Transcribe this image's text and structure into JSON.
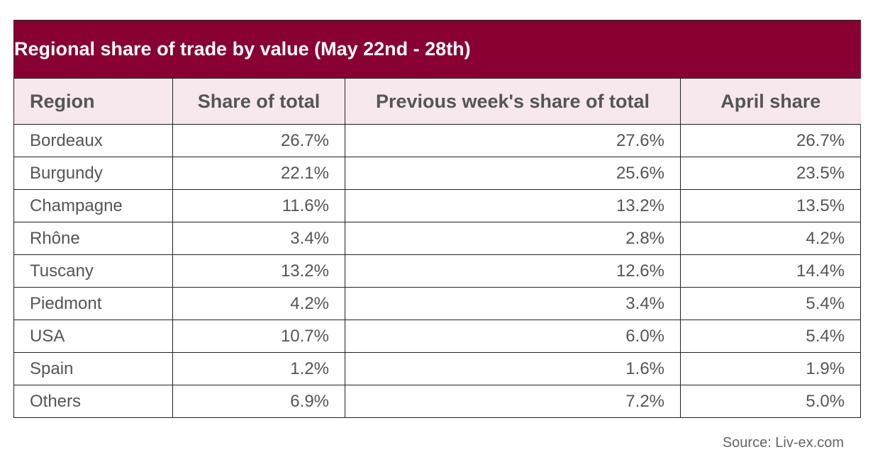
{
  "table": {
    "title": "Regional share of trade by value (May 22nd - 28th)",
    "headers": [
      "Region",
      "Share of total",
      "Previous week's share of total",
      "April share"
    ],
    "rows": [
      [
        "Bordeaux",
        "26.7%",
        "27.6%",
        "26.7%"
      ],
      [
        "Burgundy",
        "22.1%",
        "25.6%",
        "23.5%"
      ],
      [
        "Champagne",
        "11.6%",
        "13.2%",
        "13.5%"
      ],
      [
        "Rhône",
        "3.4%",
        "2.8%",
        "4.2%"
      ],
      [
        "Tuscany",
        "13.2%",
        "12.6%",
        "14.4%"
      ],
      [
        "Piedmont",
        "4.2%",
        "3.4%",
        "5.4%"
      ],
      [
        "USA",
        "10.7%",
        "6.0%",
        "5.4%"
      ],
      [
        "Spain",
        "1.2%",
        "1.6%",
        "1.9%"
      ],
      [
        "Others",
        "6.9%",
        "7.2%",
        "5.0%"
      ]
    ],
    "source": "Source: Liv-ex.com"
  }
}
